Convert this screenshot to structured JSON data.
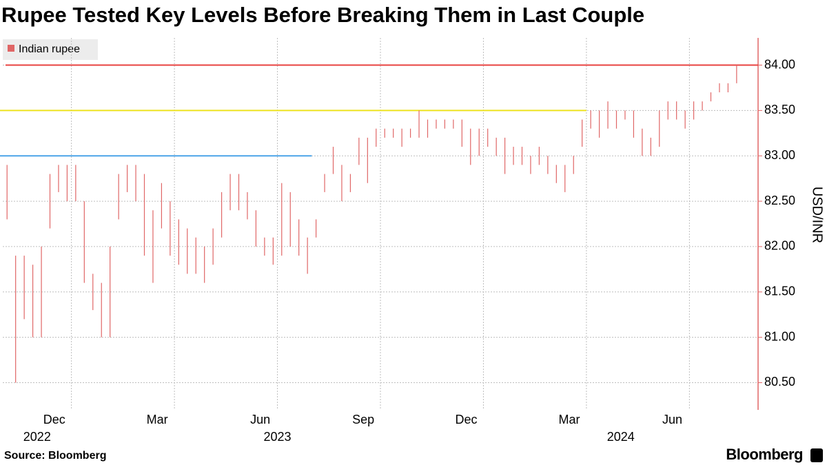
{
  "chart_data": {
    "type": "range_bar",
    "title": "Rupee Tested Key Levels Before Breaking Them in Last Couple",
    "y_label": "USD/INR",
    "source": "Source: Bloomberg",
    "brand": "Bloomberg",
    "legend": {
      "position": "top-left"
    },
    "series": [
      {
        "name": "Indian rupee",
        "color": "#e06666"
      }
    ],
    "xlim": [
      "2022-11",
      "2024-08"
    ],
    "ylim": [
      80.2,
      84.3
    ],
    "yticks": [
      {
        "value": 80.5,
        "label": "80.50"
      },
      {
        "value": 81,
        "label": "81.00"
      },
      {
        "value": 81.5,
        "label": "81.50"
      },
      {
        "value": 82,
        "label": "82.00"
      },
      {
        "value": 82.5,
        "label": "82.50"
      },
      {
        "value": 83,
        "label": "83.00"
      },
      {
        "value": 83.5,
        "label": "83.50"
      },
      {
        "value": 84,
        "label": "84.00"
      }
    ],
    "xticks": [
      {
        "value": "2022-12",
        "label": "Dec"
      },
      {
        "value": "2023-03",
        "label": "Mar"
      },
      {
        "value": "2023-06",
        "label": "Jun"
      },
      {
        "value": "2023-09",
        "label": "Sep"
      },
      {
        "value": "2023-12",
        "label": "Dec"
      },
      {
        "value": "2024-03",
        "label": "Mar"
      },
      {
        "value": "2024-06",
        "label": "Jun"
      }
    ],
    "year_labels": [
      {
        "value": "2022-12",
        "label": "2022"
      },
      {
        "value": "2023-07",
        "label": "2023"
      },
      {
        "value": "2024-05",
        "label": "2024"
      }
    ],
    "grid": true,
    "reference_lines": [
      {
        "value": 84,
        "color": "#e8413f",
        "from": "2022-11",
        "to": "2024-08"
      },
      {
        "value": 83.5,
        "color": "#ede21e",
        "from": "2022-11",
        "to": "2024-03"
      },
      {
        "value": 83,
        "color": "#4aa3e8",
        "from": "2022-11",
        "to": "2023-07"
      }
    ],
    "periods": [
      {
        "month": "2022-11",
        "high": [
          82.9,
          81.9,
          81.9,
          81.8
        ],
        "low": [
          82.3,
          80.5,
          81.2,
          81.0
        ]
      },
      {
        "month": "2022-12",
        "high": [
          82.0,
          82.8,
          82.9,
          82.9
        ],
        "low": [
          81.0,
          82.2,
          82.6,
          82.5
        ]
      },
      {
        "month": "2023-01",
        "high": [
          82.9,
          82.5,
          81.7,
          81.6
        ],
        "low": [
          82.5,
          81.6,
          81.3,
          81.0
        ]
      },
      {
        "month": "2023-02",
        "high": [
          82.0,
          82.8,
          82.9,
          82.9
        ],
        "low": [
          81.0,
          82.3,
          82.6,
          82.5
        ]
      },
      {
        "month": "2023-03",
        "high": [
          82.8,
          82.4,
          82.7,
          82.5
        ],
        "low": [
          81.9,
          81.6,
          82.2,
          81.9
        ]
      },
      {
        "month": "2023-04",
        "high": [
          82.3,
          82.2,
          82.1,
          82.0
        ],
        "low": [
          81.8,
          81.7,
          81.7,
          81.6
        ]
      },
      {
        "month": "2023-05",
        "high": [
          82.2,
          82.6,
          82.8,
          82.8
        ],
        "low": [
          81.8,
          82.1,
          82.4,
          82.4
        ]
      },
      {
        "month": "2023-06",
        "high": [
          82.6,
          82.4,
          82.1,
          82.1
        ],
        "low": [
          82.3,
          82.0,
          81.9,
          81.8
        ]
      },
      {
        "month": "2023-07",
        "high": [
          82.7,
          82.6,
          82.3,
          82.1
        ],
        "low": [
          81.9,
          82.0,
          81.9,
          81.7
        ]
      },
      {
        "month": "2023-08",
        "high": [
          82.3,
          82.8,
          83.1,
          82.9
        ],
        "low": [
          82.1,
          82.6,
          82.8,
          82.5
        ]
      },
      {
        "month": "2023-09",
        "high": [
          82.8,
          83.2,
          83.2,
          83.3
        ],
        "low": [
          82.6,
          82.9,
          82.7,
          83.1
        ]
      },
      {
        "month": "2023-10",
        "high": [
          83.3,
          83.3,
          83.3,
          83.3
        ],
        "low": [
          83.2,
          83.2,
          83.1,
          83.2
        ]
      },
      {
        "month": "2023-11",
        "high": [
          83.5,
          83.4,
          83.4,
          83.4
        ],
        "low": [
          83.2,
          83.2,
          83.3,
          83.3
        ]
      },
      {
        "month": "2023-12",
        "high": [
          83.4,
          83.4,
          83.3,
          83.3
        ],
        "low": [
          83.3,
          83.1,
          82.9,
          83.0
        ]
      },
      {
        "month": "2024-01",
        "high": [
          83.3,
          83.2,
          83.2,
          83.1
        ],
        "low": [
          83.1,
          83.0,
          82.8,
          82.9
        ]
      },
      {
        "month": "2024-02",
        "high": [
          83.1,
          83.0,
          83.1,
          83.0
        ],
        "low": [
          82.9,
          82.8,
          82.9,
          82.8
        ]
      },
      {
        "month": "2024-03",
        "high": [
          82.9,
          82.9,
          83.0,
          83.4
        ],
        "low": [
          82.7,
          82.6,
          82.8,
          83.1
        ]
      },
      {
        "month": "2024-04",
        "high": [
          83.5,
          83.5,
          83.6,
          83.5
        ],
        "low": [
          83.3,
          83.2,
          83.3,
          83.3
        ]
      },
      {
        "month": "2024-05",
        "high": [
          83.5,
          83.5,
          83.3,
          83.2
        ],
        "low": [
          83.4,
          83.2,
          83.0,
          83.0
        ]
      },
      {
        "month": "2024-06",
        "high": [
          83.5,
          83.6,
          83.6,
          83.5
        ],
        "low": [
          83.1,
          83.4,
          83.4,
          83.3
        ]
      },
      {
        "month": "2024-07",
        "high": [
          83.6,
          83.6,
          83.7,
          83.8
        ],
        "low": [
          83.4,
          83.5,
          83.6,
          83.7
        ]
      },
      {
        "month": "2024-08",
        "high": [
          83.8,
          84.0
        ],
        "low": [
          83.7,
          83.8
        ]
      }
    ]
  }
}
